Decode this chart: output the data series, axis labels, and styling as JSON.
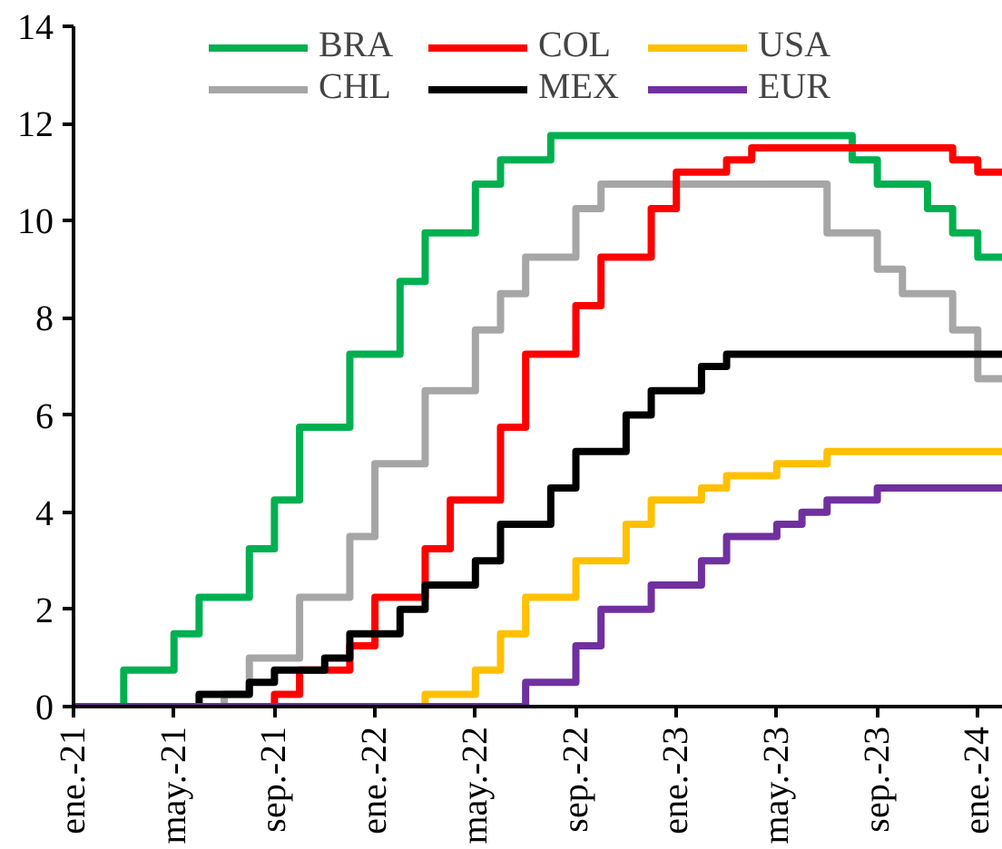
{
  "chart_data": {
    "type": "step",
    "xlim": [
      "2021-01",
      "2024-02"
    ],
    "ylim": [
      0,
      14
    ],
    "yticks": [
      0,
      2,
      4,
      6,
      8,
      10,
      12,
      14
    ],
    "xticks": [
      {
        "value": "2021-01",
        "label": "ene.-21"
      },
      {
        "value": "2021-05",
        "label": "may.-21"
      },
      {
        "value": "2021-09",
        "label": "sep.-21"
      },
      {
        "value": "2022-01",
        "label": "ene.-22"
      },
      {
        "value": "2022-05",
        "label": "may.-22"
      },
      {
        "value": "2022-09",
        "label": "sep.-22"
      },
      {
        "value": "2023-01",
        "label": "ene.-23"
      },
      {
        "value": "2023-05",
        "label": "may.-23"
      },
      {
        "value": "2023-09",
        "label": "sep.-23"
      },
      {
        "value": "2024-01",
        "label": "ene.-24"
      }
    ],
    "grid": false,
    "legend": "top",
    "line_style": "solid",
    "marker": "none",
    "series": [
      {
        "name": "BRA",
        "color": "#00b050",
        "x": [
          "2021-01",
          "2021-03",
          "2021-05",
          "2021-06",
          "2021-08",
          "2021-09",
          "2021-10",
          "2021-12",
          "2022-02",
          "2022-03",
          "2022-05",
          "2022-06",
          "2022-08",
          "2023-08",
          "2023-09",
          "2023-11",
          "2023-12",
          "2024-01",
          "2024-02"
        ],
        "values": [
          0,
          0.75,
          1.5,
          2.25,
          3.25,
          4.25,
          5.75,
          7.25,
          8.75,
          9.75,
          10.75,
          11.25,
          11.75,
          11.25,
          10.75,
          10.25,
          9.75,
          9.25,
          9.25
        ]
      },
      {
        "name": "CHL",
        "color": "#a6a6a6",
        "x": [
          "2021-01",
          "2021-07",
          "2021-08",
          "2021-10",
          "2021-12",
          "2022-01",
          "2022-03",
          "2022-05",
          "2022-06",
          "2022-07",
          "2022-09",
          "2022-10",
          "2023-07",
          "2023-09",
          "2023-10",
          "2023-12",
          "2024-01",
          "2024-02"
        ],
        "values": [
          0,
          0.25,
          1.0,
          2.25,
          3.5,
          5.0,
          6.5,
          7.75,
          8.5,
          9.25,
          10.25,
          10.75,
          9.75,
          9.0,
          8.5,
          7.75,
          6.75,
          6.75
        ]
      },
      {
        "name": "COL",
        "color": "#ff0000",
        "x": [
          "2021-01",
          "2021-09",
          "2021-10",
          "2021-12",
          "2022-01",
          "2022-03",
          "2022-04",
          "2022-06",
          "2022-07",
          "2022-09",
          "2022-10",
          "2022-12",
          "2023-01",
          "2023-03",
          "2023-04",
          "2023-12",
          "2024-01",
          "2024-02"
        ],
        "values": [
          0,
          0.25,
          0.75,
          1.25,
          2.25,
          3.25,
          4.25,
          5.75,
          7.25,
          8.25,
          9.25,
          10.25,
          11.0,
          11.25,
          11.5,
          11.25,
          11.0,
          11.0
        ]
      },
      {
        "name": "MEX",
        "color": "#000000",
        "x": [
          "2021-01",
          "2021-06",
          "2021-08",
          "2021-09",
          "2021-11",
          "2021-12",
          "2022-02",
          "2022-03",
          "2022-05",
          "2022-06",
          "2022-08",
          "2022-09",
          "2022-11",
          "2022-12",
          "2023-02",
          "2023-03",
          "2024-02"
        ],
        "values": [
          0,
          0.25,
          0.5,
          0.75,
          1.0,
          1.5,
          2.0,
          2.5,
          3.0,
          3.75,
          4.5,
          5.25,
          6.0,
          6.5,
          7.0,
          7.25,
          7.25
        ]
      },
      {
        "name": "USA",
        "color": "#ffc000",
        "x": [
          "2021-01",
          "2022-03",
          "2022-05",
          "2022-06",
          "2022-07",
          "2022-09",
          "2022-11",
          "2022-12",
          "2023-02",
          "2023-03",
          "2023-05",
          "2023-07",
          "2024-02"
        ],
        "values": [
          0,
          0.25,
          0.75,
          1.5,
          2.25,
          3.0,
          3.75,
          4.25,
          4.5,
          4.75,
          5.0,
          5.25,
          5.25
        ]
      },
      {
        "name": "EUR",
        "color": "#7030a0",
        "x": [
          "2021-01",
          "2022-07",
          "2022-09",
          "2022-10",
          "2022-12",
          "2023-02",
          "2023-03",
          "2023-05",
          "2023-06",
          "2023-07",
          "2023-09",
          "2024-02"
        ],
        "values": [
          0,
          0.5,
          1.25,
          2.0,
          2.5,
          3.0,
          3.5,
          3.75,
          4.0,
          4.25,
          4.5,
          4.5
        ]
      }
    ]
  }
}
